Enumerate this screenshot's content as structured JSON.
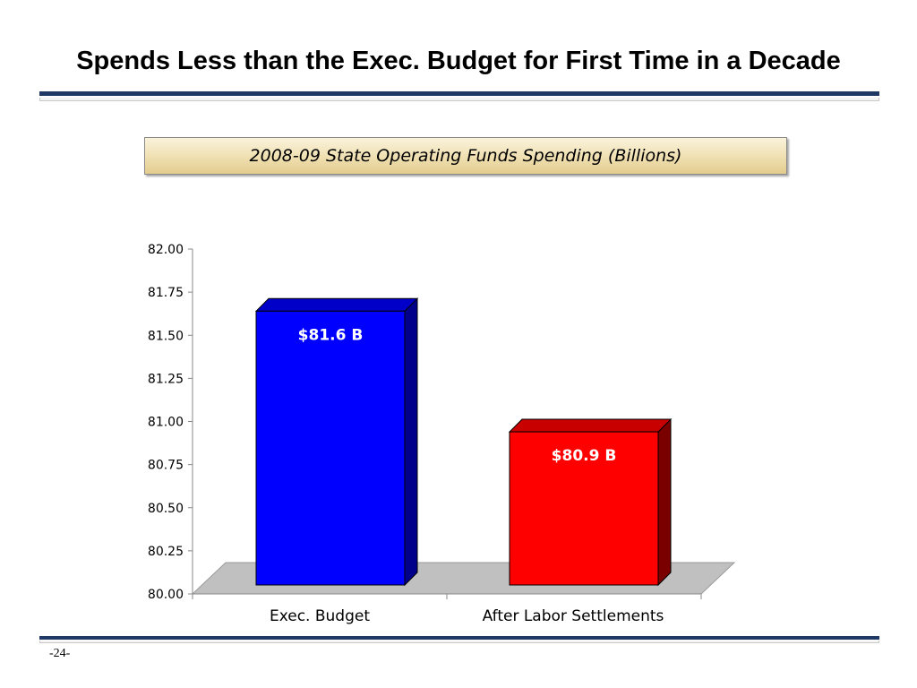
{
  "slide": {
    "title": "Spends Less than the Exec. Budget for First Time in a Decade",
    "page_number": "-24-"
  },
  "chart_data": {
    "type": "bar",
    "title": "2008-09 State Operating Funds Spending (Billions)",
    "categories": [
      "Exec. Budget",
      "After Labor Settlements"
    ],
    "values": [
      81.64,
      80.94
    ],
    "data_labels": [
      "$81.6 B",
      "$80.9 B"
    ],
    "ylim": [
      80.0,
      82.0
    ],
    "yticks": [
      "80.00",
      "80.25",
      "80.50",
      "80.75",
      "81.00",
      "81.25",
      "81.50",
      "81.75",
      "82.00"
    ],
    "ytick_values": [
      80.0,
      80.25,
      80.5,
      80.75,
      81.0,
      81.25,
      81.5,
      81.75,
      82.0
    ],
    "bar_colors": [
      "#0000ff",
      "#ff0000"
    ],
    "bar_side_colors": [
      "#00008b",
      "#7a0000"
    ],
    "bar_top_colors": [
      "#0000c8",
      "#c80000"
    ],
    "floor_color": "#c0c0c0",
    "grid": false,
    "three_d": true
  }
}
